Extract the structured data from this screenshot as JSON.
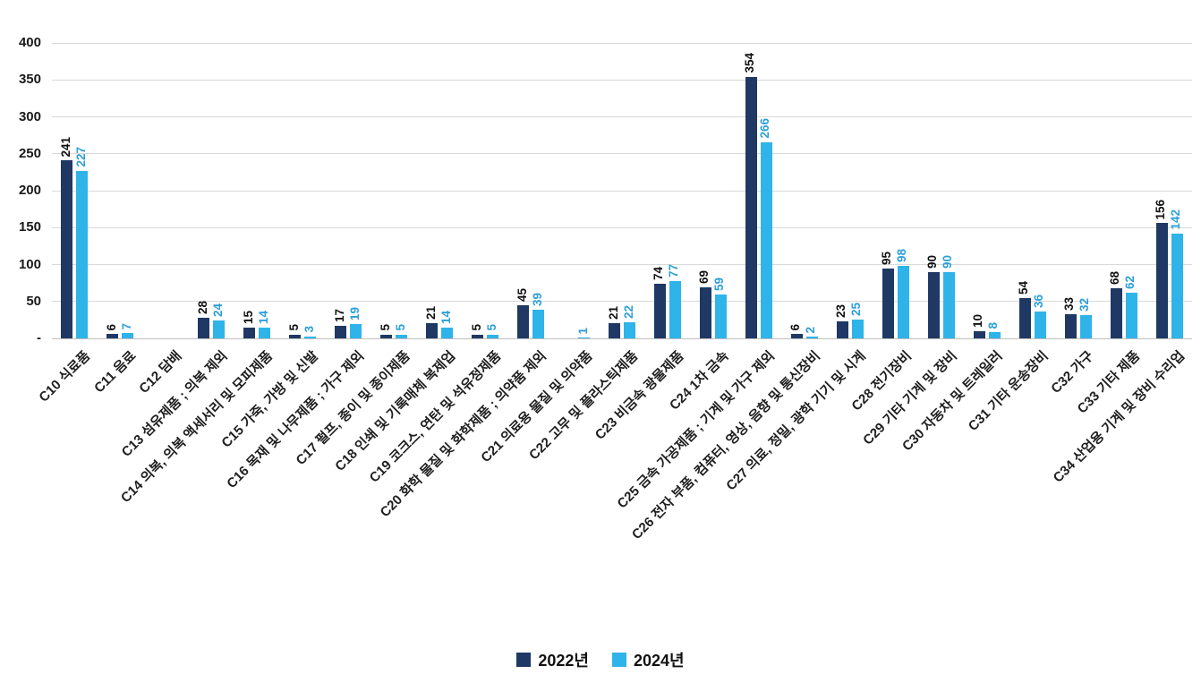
{
  "chart_data": {
    "type": "bar",
    "title": "",
    "xlabel": "",
    "ylabel": "",
    "ylim": [
      0,
      400
    ],
    "grid": true,
    "legend_position": "bottom",
    "yticks": [
      {
        "value": 0,
        "label": "-"
      },
      {
        "value": 50,
        "label": "50"
      },
      {
        "value": 100,
        "label": "100"
      },
      {
        "value": 150,
        "label": "150"
      },
      {
        "value": 200,
        "label": "200"
      },
      {
        "value": 250,
        "label": "250"
      },
      {
        "value": 300,
        "label": "300"
      },
      {
        "value": 350,
        "label": "350"
      },
      {
        "value": 400,
        "label": "400"
      }
    ],
    "categories": [
      "C10 식료품",
      "C11 음료",
      "C12 담배",
      "C13 섬유제품 ; 의복 제외",
      "C14 의복, 의복 액세서리 및 모피제품",
      "C15 가죽, 가방 및 신발",
      "C16 목재 및 나무제품 ; 가구 제외",
      "C17 펄프, 종이 및 종이제품",
      "C18 인쇄 및 기록매체 복제업",
      "C19 코크스, 연탄 및 석유정제품",
      "C20 화학 물질 및 화학제품 ; 의약품 제외",
      "C21 의료용 물질 및 의약품",
      "C22 고무 및 플라스틱제품",
      "C23 비금속 광물제품",
      "C24 1차 금속",
      "C25 금속 가공제품 ; 기계 및 가구 제외",
      "C26 전자 부품, 컴퓨터, 영상, 음향 및 통신장비",
      "C27 의료, 정밀, 광학 기기 및 시계",
      "C28 전기장비",
      "C29 기타 기계 및 장비",
      "C30 자동차 및 트레일러",
      "C31 기타 운송장비",
      "C32 가구",
      "C33 기타 제품",
      "C34 산업용 기계 및 장비 수리업"
    ],
    "series": [
      {
        "name": "2022년",
        "color": "#1F3864",
        "label_color": "#111111",
        "values": [
          241,
          6,
          0,
          28,
          15,
          5,
          17,
          5,
          21,
          5,
          45,
          0,
          21,
          74,
          69,
          354,
          6,
          23,
          95,
          90,
          10,
          54,
          33,
          68,
          156
        ]
      },
      {
        "name": "2024년",
        "color": "#2FB4E9",
        "label_color": "#2D9FD8",
        "values": [
          227,
          7,
          0,
          24,
          14,
          3,
          19,
          5,
          14,
          5,
          39,
          1,
          22,
          77,
          59,
          266,
          2,
          25,
          98,
          90,
          8,
          36,
          32,
          62,
          142
        ]
      }
    ]
  }
}
